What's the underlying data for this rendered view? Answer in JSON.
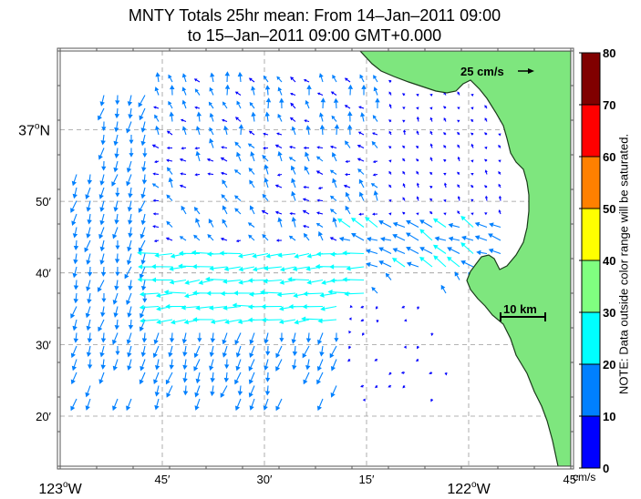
{
  "title_line1": "MNTY Totals 25hr mean: From 14–Jan–2011 09:00",
  "title_line2": "to 15–Jan–2011 09:00 GMT+0.000",
  "map": {
    "lon_range": [
      -123.0,
      -121.75
    ],
    "lat_range": [
      37.1833,
      36.2167
    ],
    "lat_ticks": [
      {
        "value": 37.0,
        "label": "37",
        "deg": "o",
        "suffix": "N"
      },
      {
        "value": 36.8333,
        "label": "50′"
      },
      {
        "value": 36.6667,
        "label": "40′"
      },
      {
        "value": 36.5,
        "label": "30′"
      },
      {
        "value": 36.3333,
        "label": "20′"
      }
    ],
    "lon_ticks": [
      {
        "value": -123.0,
        "label": "123",
        "deg": "o",
        "suffix": "W"
      },
      {
        "value": -122.75,
        "label": "45′"
      },
      {
        "value": -122.5,
        "label": "30′"
      },
      {
        "value": -122.25,
        "label": "15′"
      },
      {
        "value": -122.0,
        "label": "122",
        "deg": "o",
        "suffix": "W"
      },
      {
        "value": -121.75,
        "label": "45′"
      }
    ],
    "land_color": "#7ee67e",
    "scale_vector_label": "25 cm/s",
    "scale_bar_label": "10 km"
  },
  "colorbar": {
    "ticks": [
      "0",
      "10",
      "20",
      "30",
      "40",
      "50",
      "60",
      "70",
      "80"
    ],
    "colors": [
      "#0000ff",
      "#0080ff",
      "#00ffff",
      "#80ff80",
      "#ffff00",
      "#ff8000",
      "#ff0000",
      "#800000"
    ],
    "units": "cm/s",
    "note": "NOTE: Data outside color range will be saturated."
  }
}
